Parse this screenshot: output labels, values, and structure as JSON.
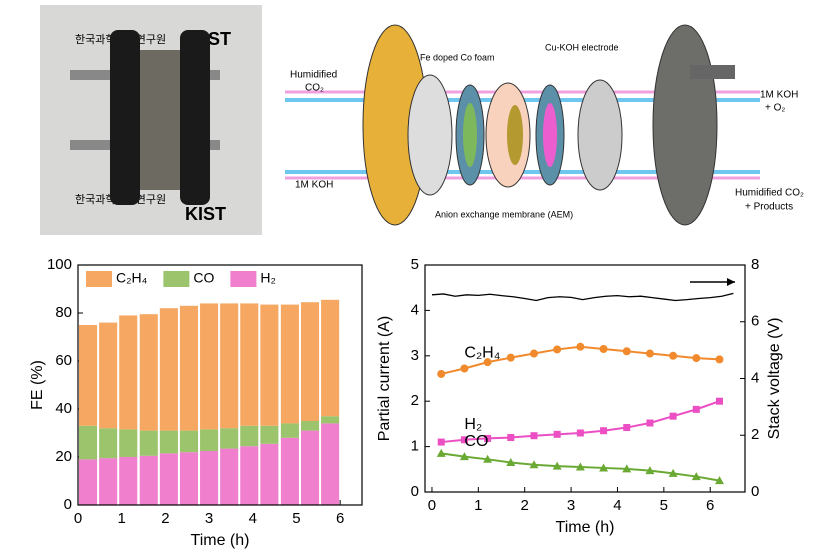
{
  "photo": {
    "watermarks": [
      "한국과학기술연구원",
      "KIST",
      "한국과학기술연구원",
      "KIST"
    ]
  },
  "diagram": {
    "labels": {
      "humidified_co2_in": [
        "Humidified",
        "CO₂"
      ],
      "koh_in": "1M KOH",
      "fe_doped": "Fe doped Co foam",
      "cu_koh": "Cu-KOH electrode",
      "koh_out": [
        "1M KOH",
        "+ O₂"
      ],
      "products_out": [
        "Humidified CO₂",
        "+ Products"
      ],
      "aem": "Anion exchange membrane (AEM)"
    }
  },
  "chart_data": [
    {
      "type": "bar",
      "stacked": true,
      "xlabel": "Time (h)",
      "ylabel": "FE (%)",
      "x": [
        0.23,
        0.69,
        1.15,
        1.62,
        2.08,
        2.54,
        3.0,
        3.46,
        3.92,
        4.38,
        4.85,
        5.31,
        5.77
      ],
      "series": [
        {
          "name": "H₂",
          "color": "#f07fce",
          "values": [
            19,
            19.5,
            20,
            20.5,
            21.5,
            22,
            22.5,
            23.5,
            24.5,
            25.5,
            28,
            31,
            34
          ]
        },
        {
          "name": "CO",
          "color": "#9cc46c",
          "values": [
            14,
            12.5,
            11.5,
            10.5,
            9.5,
            9,
            9,
            8.5,
            8.5,
            7.5,
            6,
            4,
            3
          ]
        },
        {
          "name": "C₂H₄",
          "color": "#f6a862",
          "values": [
            42,
            44,
            47.5,
            48.5,
            51,
            52,
            52.5,
            52,
            51,
            50.5,
            49.5,
            49.5,
            48.5
          ]
        }
      ],
      "xlim": [
        0,
        6.5
      ],
      "xticks": [
        0,
        1,
        2,
        3,
        4,
        5,
        6
      ],
      "ylim": [
        0,
        100
      ],
      "yticks": [
        0,
        20,
        40,
        60,
        80,
        100
      ],
      "legend": "upper left"
    },
    {
      "type": "line",
      "xlabel": "Time (h)",
      "ylabel": "Partial current (A)",
      "y2label": "Stack voltage (V)",
      "x": [
        0.2,
        0.7,
        1.2,
        1.7,
        2.2,
        2.7,
        3.2,
        3.7,
        4.2,
        4.7,
        5.2,
        5.7,
        6.2
      ],
      "series": [
        {
          "name": "C₂H₄",
          "color": "#f08a2c",
          "marker": "circle",
          "values": [
            2.6,
            2.72,
            2.86,
            2.96,
            3.05,
            3.14,
            3.2,
            3.15,
            3.1,
            3.05,
            3.0,
            2.95,
            2.92
          ]
        },
        {
          "name": "H₂",
          "color": "#ec4fc4",
          "marker": "square",
          "values": [
            1.1,
            1.15,
            1.18,
            1.2,
            1.24,
            1.27,
            1.3,
            1.35,
            1.42,
            1.52,
            1.67,
            1.82,
            2.0
          ]
        },
        {
          "name": "CO",
          "color": "#6aaa34",
          "marker": "triangle",
          "values": [
            0.85,
            0.78,
            0.72,
            0.65,
            0.6,
            0.57,
            0.55,
            0.53,
            0.51,
            0.47,
            0.41,
            0.34,
            0.25
          ]
        },
        {
          "color": "#000000",
          "axis": "y2",
          "x": [
            0,
            0.25,
            0.5,
            0.75,
            1,
            1.25,
            1.5,
            1.75,
            2,
            2.25,
            2.5,
            2.75,
            3,
            3.25,
            3.5,
            3.75,
            4,
            4.25,
            4.5,
            4.75,
            5,
            5.25,
            5.5,
            5.75,
            6,
            6.25,
            6.5
          ],
          "values": [
            6.95,
            6.98,
            6.9,
            6.95,
            6.93,
            6.97,
            6.92,
            6.88,
            6.82,
            6.75,
            6.85,
            6.88,
            6.86,
            6.78,
            6.85,
            6.9,
            6.92,
            6.88,
            6.9,
            6.85,
            6.8,
            6.75,
            6.78,
            6.82,
            6.85,
            6.9,
            7.0
          ]
        }
      ],
      "xlim": [
        -0.15,
        6.75
      ],
      "xticks": [
        0,
        1,
        2,
        3,
        4,
        5,
        6
      ],
      "ylim": [
        0,
        5
      ],
      "yticks": [
        0,
        1,
        2,
        3,
        4,
        5
      ],
      "y2lim": [
        0,
        8
      ],
      "y2ticks": [
        0,
        2,
        4,
        6,
        8
      ]
    }
  ]
}
